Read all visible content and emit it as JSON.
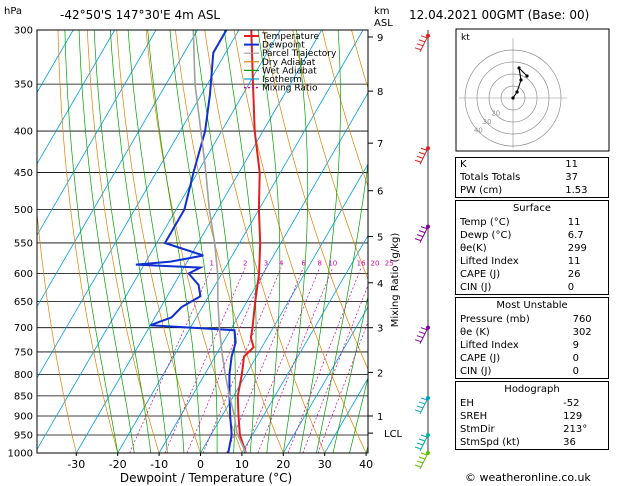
{
  "header": {
    "location": "-42°50'S  147°30'E  4m  ASL",
    "datetime": "12.04.2021  00GMT  (Base: 00)"
  },
  "axes": {
    "pressure_unit": "hPa",
    "height_unit_top": "km",
    "height_unit_bottom": "ASL",
    "x_label": "Dewpoint / Temperature (°C)",
    "mixing_ratio_label": "Mixing Ratio (g/kg)",
    "lcl_label": "LCL"
  },
  "legend": [
    {
      "label": "Temperature",
      "color": "#e02020"
    },
    {
      "label": "Dewpoint",
      "color": "#1030d0"
    },
    {
      "label": "Parcel Trajectory",
      "color": "#a0a0a0"
    },
    {
      "label": "Dry Adiabat",
      "color": "#e08000"
    },
    {
      "label": "Wet Adiabat",
      "color": "#00a000"
    },
    {
      "label": "Isotherm",
      "color": "#00a0e0"
    },
    {
      "label": "Mixing Ratio",
      "color": "#d000a0"
    }
  ],
  "chart_data": {
    "type": "line",
    "x_range": [
      -35,
      40
    ],
    "p_range": [
      300,
      1000
    ],
    "pressure_ticks": [
      300,
      350,
      400,
      450,
      500,
      550,
      600,
      650,
      700,
      750,
      800,
      850,
      900,
      950,
      1000
    ],
    "temp_ticks": [
      -30,
      -20,
      -10,
      0,
      10,
      20,
      30,
      40
    ],
    "km_ticks": [
      {
        "km": "9",
        "p": 306
      },
      {
        "km": "8",
        "p": 357
      },
      {
        "km": "7",
        "p": 414
      },
      {
        "km": "6",
        "p": 474
      },
      {
        "km": "5",
        "p": 540
      },
      {
        "km": "4",
        "p": 616
      },
      {
        "km": "3",
        "p": 700
      },
      {
        "km": "2",
        "p": 795
      },
      {
        "km": "1",
        "p": 900
      }
    ],
    "lcl_p": 945,
    "mixing_ratio_labels": [
      "1",
      "2",
      "3",
      "4",
      "6",
      "8",
      "10",
      "16",
      "20",
      "25"
    ],
    "mixing_ratio_values": [
      1,
      2,
      3,
      4,
      6,
      8,
      10,
      16,
      20,
      25
    ],
    "mixing_label_p": 590,
    "series": [
      {
        "name": "Temperature",
        "color": "#e02020",
        "points": [
          [
            1000,
            11
          ],
          [
            950,
            7
          ],
          [
            900,
            4
          ],
          [
            850,
            1
          ],
          [
            800,
            -1
          ],
          [
            760,
            -3
          ],
          [
            740,
            -2
          ],
          [
            720,
            -4
          ],
          [
            700,
            -5
          ],
          [
            650,
            -8
          ],
          [
            600,
            -11
          ],
          [
            550,
            -15
          ],
          [
            500,
            -20
          ],
          [
            450,
            -25
          ],
          [
            400,
            -32
          ],
          [
            350,
            -39
          ],
          [
            300,
            -47
          ]
        ]
      },
      {
        "name": "Dewpoint",
        "color": "#1030d0",
        "points": [
          [
            1000,
            6.7
          ],
          [
            950,
            5
          ],
          [
            900,
            2
          ],
          [
            850,
            -1
          ],
          [
            800,
            -4
          ],
          [
            760,
            -6
          ],
          [
            730,
            -7
          ],
          [
            705,
            -9
          ],
          [
            695,
            -30
          ],
          [
            680,
            -26
          ],
          [
            660,
            -25
          ],
          [
            640,
            -22
          ],
          [
            620,
            -24
          ],
          [
            600,
            -28
          ],
          [
            590,
            -26
          ],
          [
            585,
            -42
          ],
          [
            580,
            -34
          ],
          [
            570,
            -27
          ],
          [
            550,
            -38
          ],
          [
            500,
            -38
          ],
          [
            450,
            -41
          ],
          [
            400,
            -44
          ],
          [
            360,
            -48
          ],
          [
            320,
            -53
          ],
          [
            300,
            -53
          ]
        ]
      },
      {
        "name": "Parcel Trajectory",
        "color": "#a0a0a0",
        "points": [
          [
            1000,
            11
          ],
          [
            945,
            6
          ],
          [
            900,
            3
          ],
          [
            850,
            -1
          ],
          [
            800,
            -5
          ],
          [
            750,
            -9
          ],
          [
            700,
            -13
          ],
          [
            650,
            -17
          ],
          [
            600,
            -21
          ],
          [
            550,
            -26
          ],
          [
            500,
            -32
          ],
          [
            450,
            -38
          ],
          [
            400,
            -45
          ],
          [
            350,
            -53
          ],
          [
            300,
            -61
          ]
        ]
      }
    ],
    "wind_barbs": [
      {
        "p": 305,
        "color": "#e02020"
      },
      {
        "p": 420,
        "color": "#e02020"
      },
      {
        "p": 525,
        "color": "#8000a0"
      },
      {
        "p": 700,
        "color": "#8000a0"
      },
      {
        "p": 855,
        "color": "#00a0c0"
      },
      {
        "p": 950,
        "color": "#00b0a0"
      },
      {
        "p": 1000,
        "color": "#60c000"
      }
    ]
  },
  "hodograph": {
    "unit": "kt",
    "ring_labels": [
      "20",
      "30",
      "40"
    ],
    "points": [
      [
        0,
        0
      ],
      [
        4,
        6
      ],
      [
        8,
        18
      ],
      [
        6,
        30
      ],
      [
        14,
        22
      ]
    ]
  },
  "stats": {
    "indices": [
      {
        "label": "K",
        "value": "11"
      },
      {
        "label": "Totals Totals",
        "value": "37"
      },
      {
        "label": "PW (cm)",
        "value": "1.53"
      }
    ],
    "surface": {
      "title": "Surface",
      "rows": [
        {
          "label": "Temp (°C)",
          "value": "11"
        },
        {
          "label": "Dewp (°C)",
          "value": "6.7"
        },
        {
          "label": "θe(K)",
          "value": "299"
        },
        {
          "label": "Lifted Index",
          "value": "11"
        },
        {
          "label": "CAPE (J)",
          "value": "26"
        },
        {
          "label": "CIN (J)",
          "value": "0"
        }
      ]
    },
    "unstable": {
      "title": "Most Unstable",
      "rows": [
        {
          "label": "Pressure (mb)",
          "value": "760"
        },
        {
          "label": "θe (K)",
          "value": "302"
        },
        {
          "label": "Lifted Index",
          "value": "9"
        },
        {
          "label": "CAPE (J)",
          "value": "0"
        },
        {
          "label": "CIN (J)",
          "value": "0"
        }
      ]
    },
    "hodo": {
      "title": "Hodograph",
      "rows": [
        {
          "label": "EH",
          "value": "-52"
        },
        {
          "label": "SREH",
          "value": "129"
        },
        {
          "label": "StmDir",
          "value": "213°"
        },
        {
          "label": "StmSpd (kt)",
          "value": "36"
        }
      ]
    }
  },
  "footer": {
    "credit": "© weatheronline.co.uk"
  }
}
